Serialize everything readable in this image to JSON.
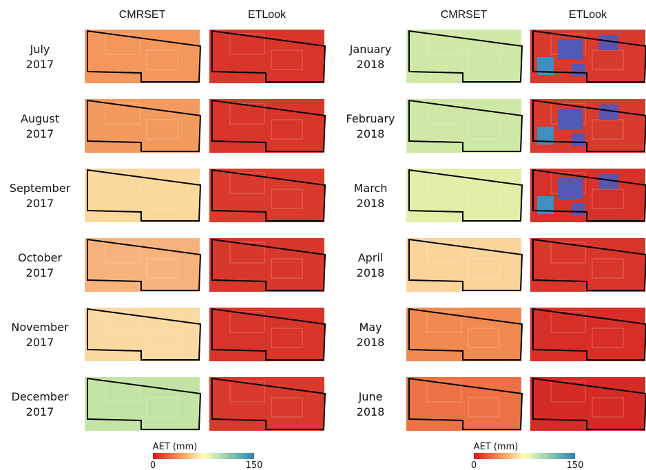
{
  "columns": {
    "left": [
      "CMRSET",
      "ETLook"
    ],
    "right": [
      "CMRSET",
      "ETLook"
    ]
  },
  "rows": {
    "left": [
      {
        "month": "July",
        "year": "2017"
      },
      {
        "month": "August",
        "year": "2017"
      },
      {
        "month": "September",
        "year": "2017"
      },
      {
        "month": "October",
        "year": "2017"
      },
      {
        "month": "November",
        "year": "2017"
      },
      {
        "month": "December",
        "year": "2017"
      }
    ],
    "right": [
      {
        "month": "January",
        "year": "2018"
      },
      {
        "month": "February",
        "year": "2018"
      },
      {
        "month": "March",
        "year": "2018"
      },
      {
        "month": "April",
        "year": "2018"
      },
      {
        "month": "May",
        "year": "2018"
      },
      {
        "month": "June",
        "year": "2018"
      }
    ]
  },
  "colorbars": {
    "left": {
      "label": "AET (mm)",
      "min": "0",
      "max": "150"
    },
    "right": {
      "label": "AET (mm)",
      "min": "0",
      "max": "150"
    }
  }
}
